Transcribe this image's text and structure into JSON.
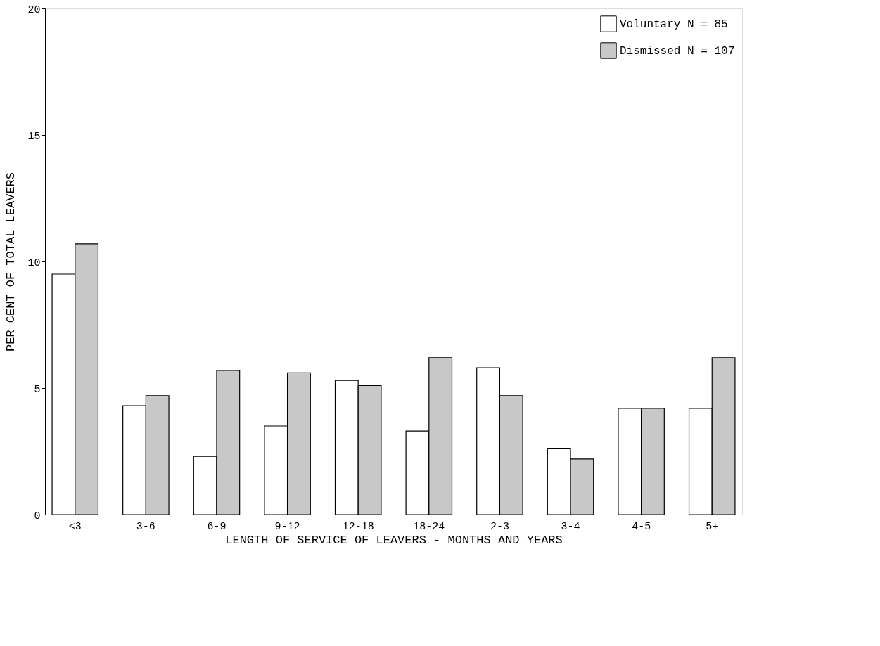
{
  "chart_data": {
    "type": "bar",
    "xlabel": "LENGTH OF SERVICE OF LEAVERS - MONTHS AND YEARS",
    "ylabel": "PER CENT OF TOTAL LEAVERS",
    "categories": [
      "<3",
      "3-6",
      "6-9",
      "9-12",
      "12-18",
      "18-24",
      "2-3",
      "3-4",
      "4-5",
      "5+"
    ],
    "series": [
      {
        "name": "Voluntary N = 85",
        "color": "#ffffff",
        "values": [
          9.5,
          4.3,
          2.3,
          3.5,
          5.3,
          3.3,
          5.8,
          2.6,
          4.2,
          4.2
        ]
      },
      {
        "name": "Dismissed N = 107",
        "color": "#c8c8c8",
        "values": [
          10.7,
          4.7,
          5.7,
          5.6,
          5.1,
          6.2,
          4.7,
          2.2,
          4.2,
          6.2
        ]
      }
    ],
    "ylim": [
      0,
      20
    ],
    "yticks": [
      0,
      5,
      10,
      15,
      20
    ],
    "grid": false,
    "legend": "top right"
  }
}
